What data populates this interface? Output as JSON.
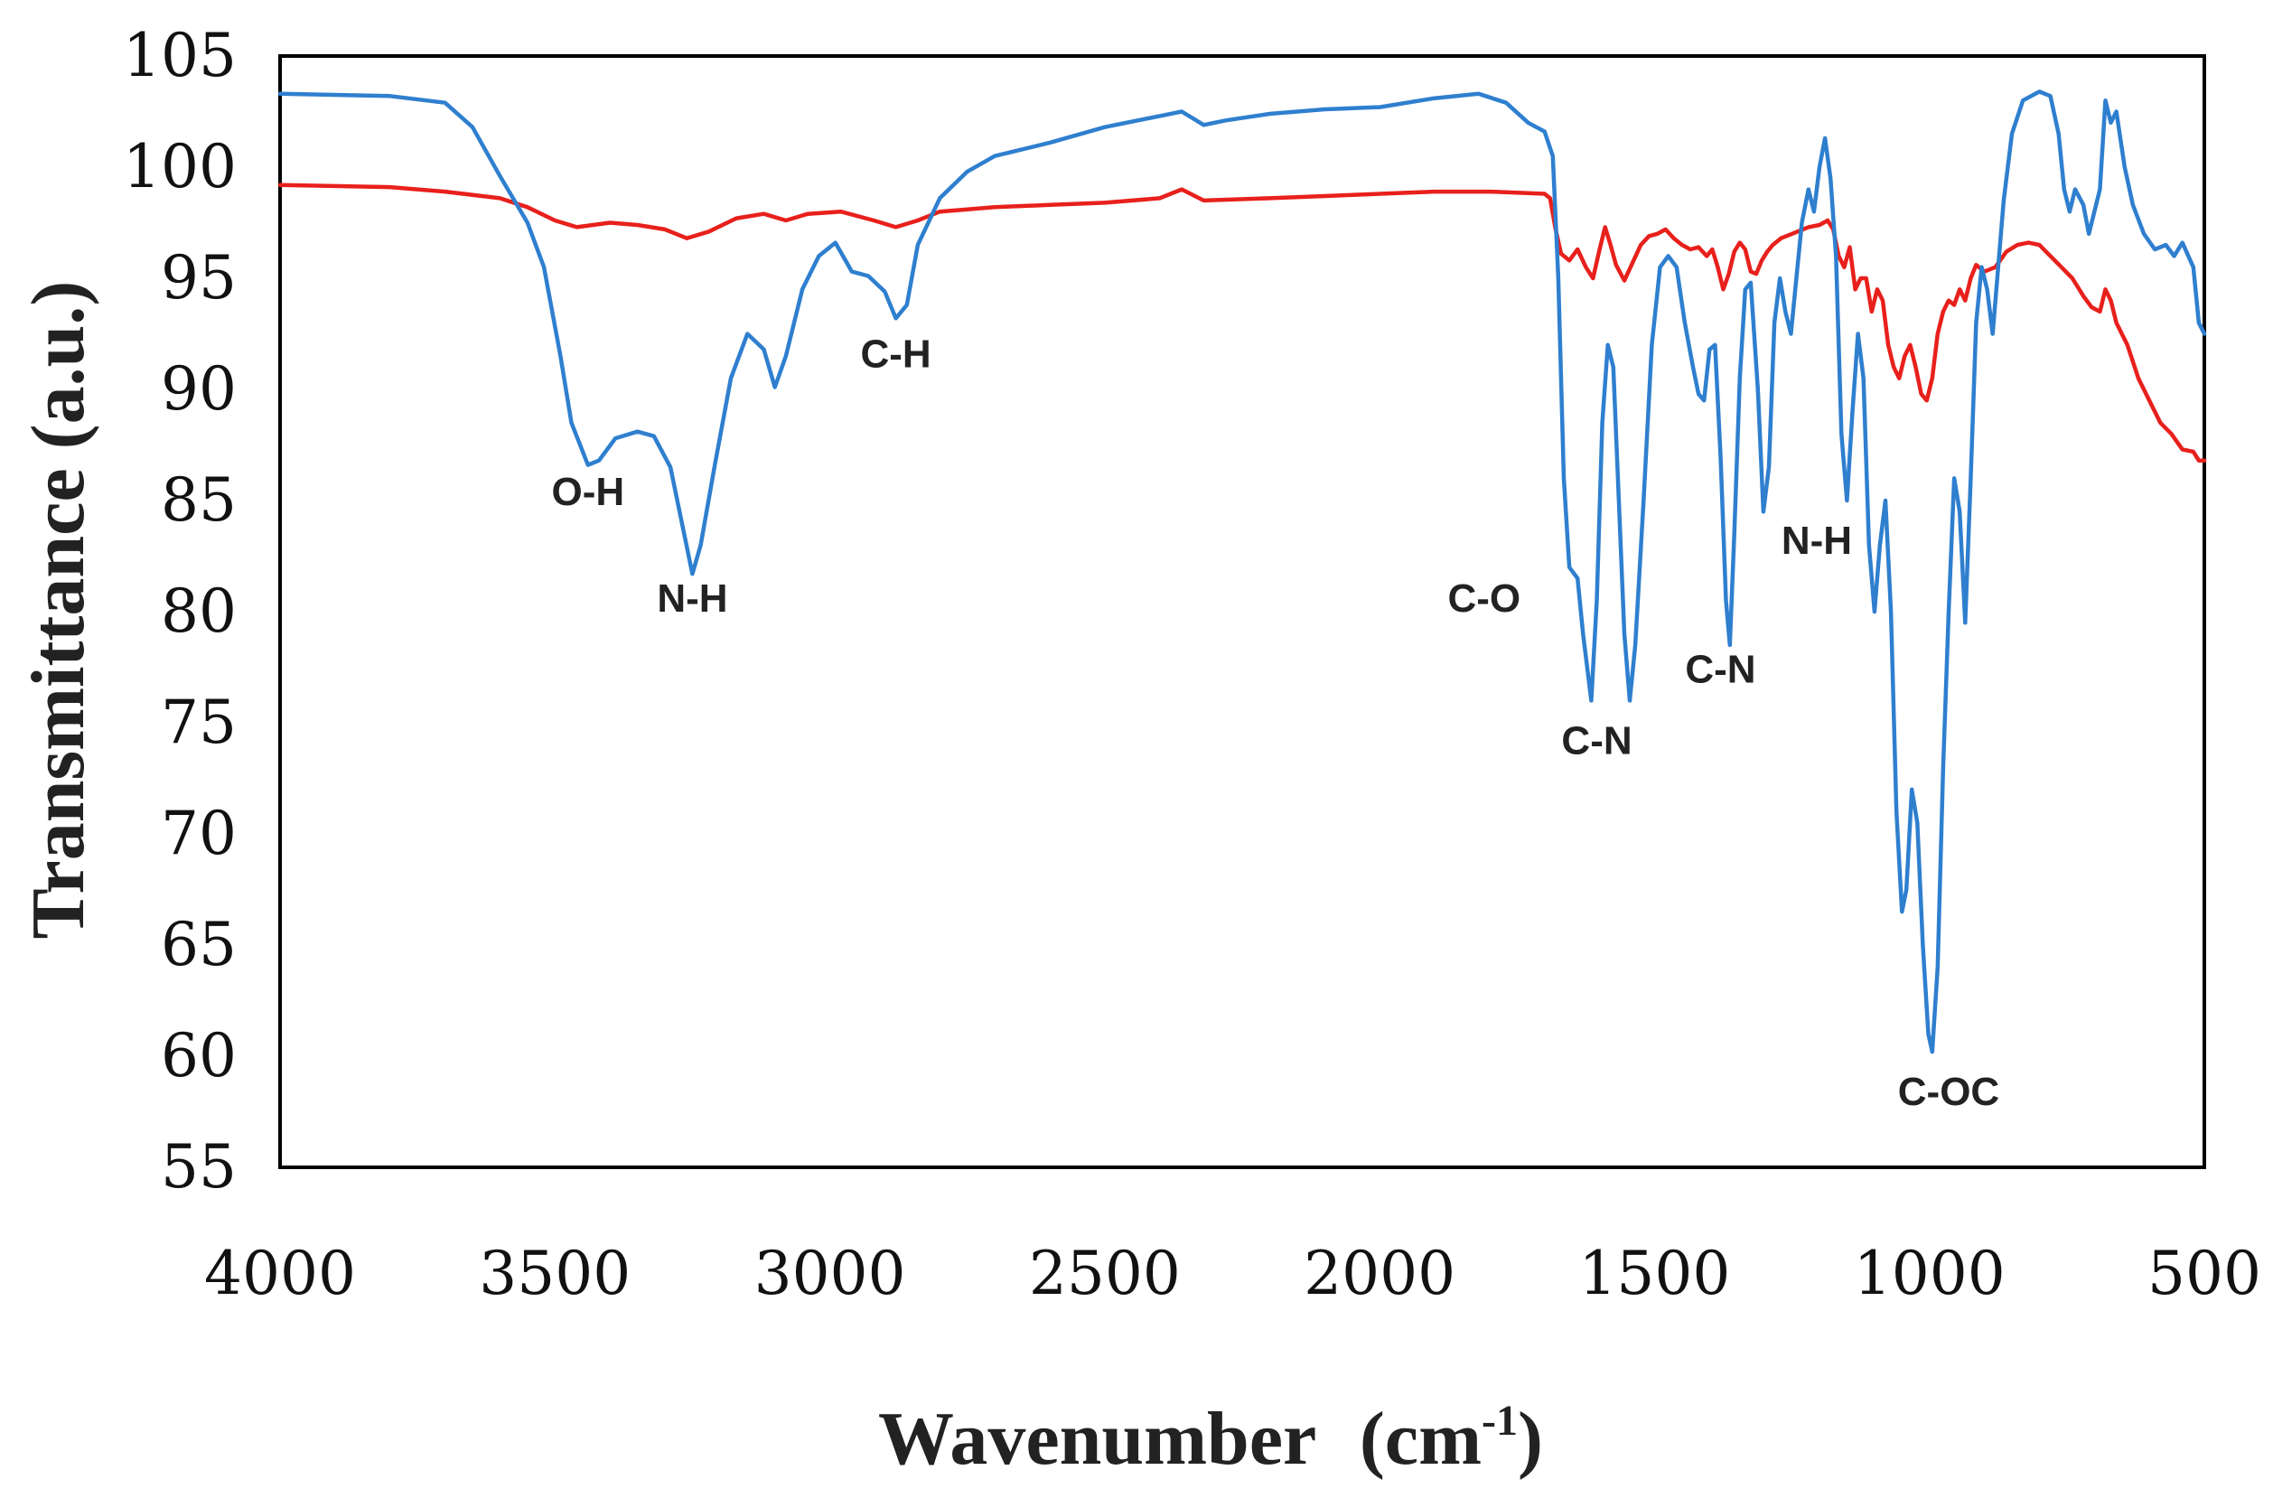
{
  "chart_data": {
    "type": "line",
    "title": "",
    "xlabel": "Wavenumber",
    "xlabel_unit": "(cm",
    "xlabel_sup": "-1",
    "xlabel_close": ")",
    "ylabel": "Transmittance  (a.u.)",
    "xlim": [
      4000,
      500
    ],
    "ylim": [
      55,
      105
    ],
    "xticks": [
      4000,
      3500,
      3000,
      2500,
      2000,
      1500,
      1000,
      500
    ],
    "yticks": [
      105,
      100,
      95,
      90,
      85,
      80,
      75,
      70,
      65,
      60,
      55
    ],
    "grid": false,
    "series": [
      {
        "name": "blue spectrum",
        "color": "#2f7fcf",
        "points": [
          [
            4000,
            103.3
          ],
          [
            3800,
            103.2
          ],
          [
            3700,
            102.9
          ],
          [
            3650,
            101.8
          ],
          [
            3600,
            99.6
          ],
          [
            3550,
            97.5
          ],
          [
            3520,
            95.5
          ],
          [
            3490,
            91.5
          ],
          [
            3470,
            88.5
          ],
          [
            3440,
            86.6
          ],
          [
            3420,
            86.8
          ],
          [
            3390,
            87.8
          ],
          [
            3350,
            88.1
          ],
          [
            3320,
            87.9
          ],
          [
            3290,
            86.5
          ],
          [
            3265,
            83.5
          ],
          [
            3250,
            81.7
          ],
          [
            3235,
            83.0
          ],
          [
            3210,
            86.5
          ],
          [
            3180,
            90.5
          ],
          [
            3150,
            92.5
          ],
          [
            3120,
            91.8
          ],
          [
            3100,
            90.1
          ],
          [
            3080,
            91.5
          ],
          [
            3050,
            94.5
          ],
          [
            3020,
            96.0
          ],
          [
            2990,
            96.6
          ],
          [
            2960,
            95.3
          ],
          [
            2930,
            95.1
          ],
          [
            2900,
            94.4
          ],
          [
            2880,
            93.2
          ],
          [
            2860,
            93.8
          ],
          [
            2840,
            96.5
          ],
          [
            2800,
            98.6
          ],
          [
            2750,
            99.8
          ],
          [
            2700,
            100.5
          ],
          [
            2600,
            101.1
          ],
          [
            2500,
            101.8
          ],
          [
            2400,
            102.3
          ],
          [
            2360,
            102.5
          ],
          [
            2320,
            101.9
          ],
          [
            2280,
            102.1
          ],
          [
            2200,
            102.4
          ],
          [
            2100,
            102.6
          ],
          [
            2000,
            102.7
          ],
          [
            1900,
            103.1
          ],
          [
            1820,
            103.3
          ],
          [
            1770,
            102.9
          ],
          [
            1730,
            102.0
          ],
          [
            1700,
            101.6
          ],
          [
            1685,
            100.5
          ],
          [
            1675,
            95.0
          ],
          [
            1665,
            86.0
          ],
          [
            1655,
            82.0
          ],
          [
            1640,
            81.5
          ],
          [
            1630,
            79.0
          ],
          [
            1615,
            76.0
          ],
          [
            1605,
            80.5
          ],
          [
            1595,
            88.5
          ],
          [
            1585,
            92.0
          ],
          [
            1575,
            91.0
          ],
          [
            1565,
            85.0
          ],
          [
            1555,
            79.0
          ],
          [
            1545,
            76.0
          ],
          [
            1535,
            78.5
          ],
          [
            1520,
            85.0
          ],
          [
            1505,
            92.0
          ],
          [
            1490,
            95.5
          ],
          [
            1475,
            96.0
          ],
          [
            1460,
            95.5
          ],
          [
            1445,
            93.0
          ],
          [
            1430,
            91.0
          ],
          [
            1420,
            89.8
          ],
          [
            1410,
            89.5
          ],
          [
            1400,
            91.8
          ],
          [
            1390,
            92.0
          ],
          [
            1380,
            87.0
          ],
          [
            1370,
            80.5
          ],
          [
            1363,
            78.5
          ],
          [
            1355,
            83.5
          ],
          [
            1345,
            90.5
          ],
          [
            1335,
            94.5
          ],
          [
            1325,
            94.8
          ],
          [
            1312,
            90.0
          ],
          [
            1302,
            84.5
          ],
          [
            1292,
            86.5
          ],
          [
            1282,
            93.0
          ],
          [
            1272,
            95.0
          ],
          [
            1262,
            93.5
          ],
          [
            1252,
            92.5
          ],
          [
            1242,
            95.0
          ],
          [
            1232,
            97.5
          ],
          [
            1220,
            99.0
          ],
          [
            1210,
            98.0
          ],
          [
            1200,
            100.0
          ],
          [
            1190,
            101.3
          ],
          [
            1180,
            99.5
          ],
          [
            1170,
            96.0
          ],
          [
            1160,
            88.0
          ],
          [
            1150,
            85.0
          ],
          [
            1140,
            89.0
          ],
          [
            1130,
            92.5
          ],
          [
            1120,
            90.5
          ],
          [
            1110,
            83.0
          ],
          [
            1100,
            80.0
          ],
          [
            1090,
            83.0
          ],
          [
            1080,
            85.0
          ],
          [
            1070,
            80.0
          ],
          [
            1060,
            71.0
          ],
          [
            1050,
            66.5
          ],
          [
            1042,
            67.5
          ],
          [
            1032,
            72.0
          ],
          [
            1022,
            70.5
          ],
          [
            1012,
            65.0
          ],
          [
            1002,
            61.0
          ],
          [
            995,
            60.2
          ],
          [
            985,
            64.0
          ],
          [
            975,
            73.0
          ],
          [
            965,
            80.0
          ],
          [
            955,
            86.0
          ],
          [
            945,
            84.5
          ],
          [
            935,
            79.5
          ],
          [
            925,
            86.0
          ],
          [
            915,
            93.0
          ],
          [
            905,
            95.5
          ],
          [
            895,
            94.5
          ],
          [
            885,
            92.5
          ],
          [
            875,
            95.5
          ],
          [
            865,
            98.5
          ],
          [
            850,
            101.5
          ],
          [
            830,
            103.0
          ],
          [
            800,
            103.4
          ],
          [
            780,
            103.2
          ],
          [
            765,
            101.5
          ],
          [
            755,
            99.0
          ],
          [
            745,
            98.0
          ],
          [
            735,
            99.0
          ],
          [
            720,
            98.3
          ],
          [
            710,
            97.0
          ],
          [
            700,
            98.0
          ],
          [
            690,
            99.0
          ],
          [
            680,
            103.0
          ],
          [
            670,
            102.0
          ],
          [
            660,
            102.5
          ],
          [
            645,
            100.0
          ],
          [
            630,
            98.3
          ],
          [
            610,
            97.0
          ],
          [
            590,
            96.3
          ],
          [
            570,
            96.5
          ],
          [
            555,
            96.0
          ],
          [
            540,
            96.6
          ],
          [
            520,
            95.5
          ],
          [
            510,
            93.0
          ],
          [
            500,
            92.5
          ]
        ]
      },
      {
        "name": "red spectrum",
        "color": "#e8201c",
        "points": [
          [
            4000,
            99.2
          ],
          [
            3800,
            99.1
          ],
          [
            3700,
            98.9
          ],
          [
            3600,
            98.6
          ],
          [
            3550,
            98.2
          ],
          [
            3500,
            97.6
          ],
          [
            3460,
            97.3
          ],
          [
            3400,
            97.5
          ],
          [
            3350,
            97.4
          ],
          [
            3300,
            97.2
          ],
          [
            3260,
            96.8
          ],
          [
            3220,
            97.1
          ],
          [
            3170,
            97.7
          ],
          [
            3120,
            97.9
          ],
          [
            3080,
            97.6
          ],
          [
            3040,
            97.9
          ],
          [
            2980,
            98.0
          ],
          [
            2920,
            97.6
          ],
          [
            2880,
            97.3
          ],
          [
            2840,
            97.6
          ],
          [
            2800,
            98.0
          ],
          [
            2700,
            98.2
          ],
          [
            2600,
            98.3
          ],
          [
            2500,
            98.4
          ],
          [
            2400,
            98.6
          ],
          [
            2360,
            99.0
          ],
          [
            2320,
            98.5
          ],
          [
            2200,
            98.6
          ],
          [
            2100,
            98.7
          ],
          [
            2000,
            98.8
          ],
          [
            1900,
            98.9
          ],
          [
            1800,
            98.9
          ],
          [
            1700,
            98.8
          ],
          [
            1690,
            98.6
          ],
          [
            1680,
            97.2
          ],
          [
            1670,
            96.1
          ],
          [
            1655,
            95.8
          ],
          [
            1640,
            96.3
          ],
          [
            1625,
            95.5
          ],
          [
            1612,
            95.0
          ],
          [
            1600,
            96.3
          ],
          [
            1590,
            97.3
          ],
          [
            1580,
            96.5
          ],
          [
            1570,
            95.6
          ],
          [
            1555,
            94.9
          ],
          [
            1540,
            95.7
          ],
          [
            1525,
            96.5
          ],
          [
            1510,
            96.9
          ],
          [
            1495,
            97.0
          ],
          [
            1480,
            97.2
          ],
          [
            1465,
            96.8
          ],
          [
            1450,
            96.5
          ],
          [
            1435,
            96.3
          ],
          [
            1420,
            96.4
          ],
          [
            1405,
            96.0
          ],
          [
            1395,
            96.3
          ],
          [
            1385,
            95.5
          ],
          [
            1375,
            94.5
          ],
          [
            1365,
            95.2
          ],
          [
            1355,
            96.2
          ],
          [
            1345,
            96.6
          ],
          [
            1335,
            96.3
          ],
          [
            1325,
            95.3
          ],
          [
            1315,
            95.2
          ],
          [
            1305,
            95.8
          ],
          [
            1295,
            96.2
          ],
          [
            1285,
            96.5
          ],
          [
            1270,
            96.8
          ],
          [
            1250,
            97.0
          ],
          [
            1220,
            97.3
          ],
          [
            1200,
            97.4
          ],
          [
            1185,
            97.6
          ],
          [
            1175,
            97.2
          ],
          [
            1165,
            96.0
          ],
          [
            1155,
            95.5
          ],
          [
            1145,
            96.4
          ],
          [
            1135,
            94.5
          ],
          [
            1125,
            95.0
          ],
          [
            1115,
            95.0
          ],
          [
            1105,
            93.5
          ],
          [
            1095,
            94.5
          ],
          [
            1085,
            94.0
          ],
          [
            1075,
            92.0
          ],
          [
            1065,
            91.0
          ],
          [
            1055,
            90.5
          ],
          [
            1045,
            91.5
          ],
          [
            1035,
            92.0
          ],
          [
            1025,
            91.0
          ],
          [
            1015,
            89.8
          ],
          [
            1005,
            89.5
          ],
          [
            995,
            90.5
          ],
          [
            985,
            92.5
          ],
          [
            975,
            93.5
          ],
          [
            965,
            94.0
          ],
          [
            955,
            93.8
          ],
          [
            945,
            94.5
          ],
          [
            935,
            94.0
          ],
          [
            925,
            95.0
          ],
          [
            915,
            95.6
          ],
          [
            900,
            95.3
          ],
          [
            880,
            95.5
          ],
          [
            860,
            96.2
          ],
          [
            840,
            96.5
          ],
          [
            820,
            96.6
          ],
          [
            800,
            96.5
          ],
          [
            780,
            96.0
          ],
          [
            760,
            95.5
          ],
          [
            740,
            95.0
          ],
          [
            720,
            94.2
          ],
          [
            705,
            93.7
          ],
          [
            690,
            93.5
          ],
          [
            680,
            94.5
          ],
          [
            670,
            94.0
          ],
          [
            660,
            93.0
          ],
          [
            640,
            92.0
          ],
          [
            620,
            90.5
          ],
          [
            600,
            89.5
          ],
          [
            580,
            88.5
          ],
          [
            560,
            88.0
          ],
          [
            540,
            87.3
          ],
          [
            520,
            87.2
          ],
          [
            510,
            86.8
          ],
          [
            500,
            86.8
          ]
        ]
      }
    ],
    "annotations": [
      {
        "text": "O-H",
        "x": 3440,
        "y": 84.8
      },
      {
        "text": "N-H",
        "x": 3250,
        "y": 80.0
      },
      {
        "text": "C-H",
        "x": 2880,
        "y": 91.0
      },
      {
        "text": "C-O",
        "x": 1810,
        "y": 80.0
      },
      {
        "text": "C-N",
        "x": 1605,
        "y": 73.6
      },
      {
        "text": "C-N",
        "x": 1380,
        "y": 76.8
      },
      {
        "text": "N-H",
        "x": 1205,
        "y": 82.6
      },
      {
        "text": "C-OC",
        "x": 965,
        "y": 57.8
      }
    ]
  }
}
